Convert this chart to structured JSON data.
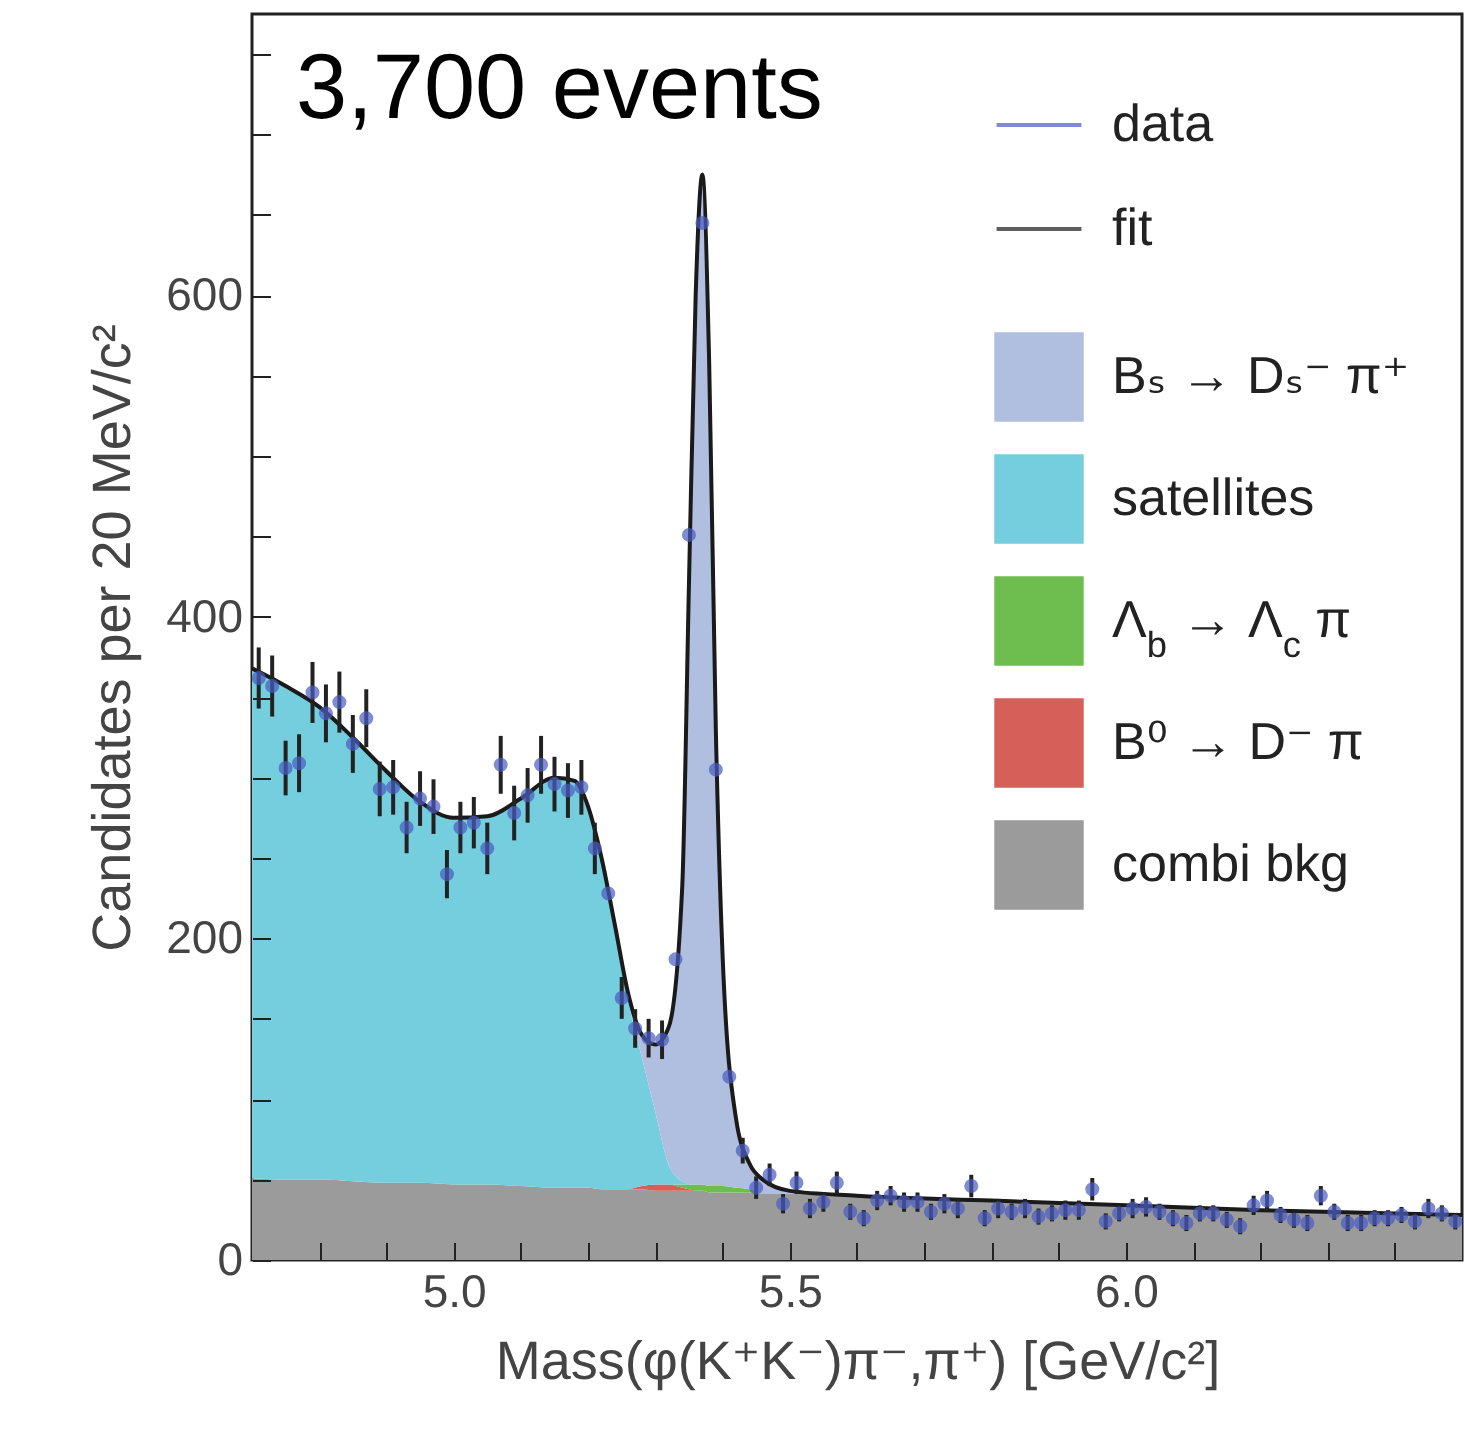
{
  "chart_data": {
    "type": "area",
    "stacked": true,
    "xlabel": "Mass(φ(K⁺K⁻)π⁻,π⁺)  [GeV/c²]",
    "ylabel": "Candidates per 20 MeV/c²",
    "annotations": [
      "3,700 events"
    ],
    "x": [
      4.7,
      4.75,
      4.8,
      4.85,
      4.9,
      4.95,
      5.0,
      5.05,
      5.1,
      5.15,
      5.18,
      5.2,
      5.22,
      5.24,
      5.26,
      5.28,
      5.3,
      5.32,
      5.34,
      5.35,
      5.36,
      5.37,
      5.38,
      5.39,
      5.4,
      5.42,
      5.44,
      5.46,
      5.5,
      5.6,
      5.8,
      6.0,
      6.2,
      6.5
    ],
    "xlim": [
      4.7,
      6.5
    ],
    "ylim": [
      0,
      775
    ],
    "xticks": [
      {
        "value": 4.8,
        "label": null
      },
      {
        "value": 4.9,
        "label": null
      },
      {
        "value": 5,
        "label": "5.0"
      },
      {
        "value": 5.1,
        "label": null
      },
      {
        "value": 5.2,
        "label": null
      },
      {
        "value": 5.3,
        "label": null
      },
      {
        "value": 5.4,
        "label": null
      },
      5.5,
      {
        "value": 5.6,
        "label": null
      },
      {
        "value": 5.7,
        "label": null
      },
      {
        "value": 5.8,
        "label": null
      },
      {
        "value": 5.9,
        "label": null
      },
      {
        "value": 6,
        "label": "6.0"
      },
      {
        "value": 6.1,
        "label": null
      },
      {
        "value": 6.2,
        "label": null
      },
      {
        "value": 6.3,
        "label": null
      },
      {
        "value": 6.4,
        "label": null
      }
    ],
    "yticks": [
      0,
      {
        "value": 50,
        "label": null
      },
      {
        "value": 100,
        "label": null
      },
      {
        "value": 150,
        "label": null
      },
      200,
      {
        "value": 250,
        "label": null
      },
      {
        "value": 300,
        "label": null
      },
      {
        "value": 350,
        "label": null
      },
      400,
      {
        "value": 450,
        "label": null
      },
      {
        "value": 500,
        "label": null
      },
      {
        "value": 550,
        "label": null
      },
      600,
      {
        "value": 650,
        "label": null
      },
      {
        "value": 700,
        "label": null
      },
      {
        "value": 750,
        "label": null
      }
    ],
    "grid": false,
    "legend": "top right",
    "series": [
      {
        "name": "combi bkg",
        "color": "#9b9b9b",
        "values": [
          51,
          50,
          50,
          49,
          48,
          48,
          47,
          47,
          46,
          45,
          45,
          45,
          44,
          44,
          44,
          44,
          43,
          43,
          43,
          43,
          43,
          43,
          42,
          42,
          42,
          42,
          42,
          41,
          41,
          40,
          37,
          34,
          31,
          27
        ]
      },
      {
        "name": "B⁰ → D⁻ π",
        "color": "#d65f59",
        "values": [
          null,
          null,
          null,
          null,
          null,
          null,
          null,
          null,
          null,
          null,
          null,
          null,
          null,
          null,
          0,
          2,
          4,
          4,
          2,
          1,
          0,
          null,
          null,
          null,
          null,
          null,
          null,
          null,
          null,
          null,
          null,
          null,
          null,
          null
        ]
      },
      {
        "name": "Λ$_{b}$ → Λ$_{c}$ π",
        "color": "#6dbe4e",
        "values": [
          null,
          null,
          null,
          null,
          null,
          null,
          null,
          null,
          null,
          null,
          null,
          null,
          null,
          null,
          null,
          null,
          null,
          0,
          2,
          3,
          4,
          4,
          4,
          4,
          4,
          3,
          2,
          0,
          null,
          null,
          null,
          null,
          null,
          null
        ]
      },
      {
        "name": "satellites",
        "color": "#74cedd",
        "values": [
          317,
          307,
          294,
          276,
          256,
          237,
          228,
          229,
          241,
          255,
          253,
          235,
          204,
          161,
          116,
          80,
          45,
          12,
          2,
          0,
          null,
          null,
          null,
          null,
          null,
          null,
          null,
          null,
          null,
          null,
          null,
          null,
          null,
          null
        ]
      },
      {
        "name": "Bₛ → Dₛ⁻ π⁺",
        "color": "#b0bedf",
        "values": [
          null,
          null,
          null,
          null,
          null,
          null,
          null,
          null,
          null,
          null,
          null,
          0,
          2,
          3,
          5,
          14,
          42,
          86,
          184,
          374,
          555,
          630,
          516,
          286,
          146,
          44,
          17,
          9,
          2,
          0,
          null,
          null,
          null,
          null
        ]
      },
      {
        "name": "fit",
        "type": "line",
        "color": "#1a1a1a",
        "values": [
          368,
          357,
          344,
          325,
          304,
          285,
          275,
          276,
          287,
          300,
          298,
          282,
          250,
          208,
          165,
          140,
          134,
          145,
          232,
          420,
          600,
          675,
          560,
          330,
          190,
          88,
          60,
          50,
          43,
          40,
          37,
          34,
          31,
          28
        ]
      },
      {
        "name": "data",
        "type": "scatter",
        "marker": "circle",
        "color": "#4a5cc0",
        "x": [
          4.71,
          4.73,
          4.75,
          4.77,
          4.79,
          4.81,
          4.83,
          4.85,
          4.87,
          4.89,
          4.91,
          4.93,
          4.95,
          4.97,
          4.99,
          5.01,
          5.03,
          5.05,
          5.07,
          5.09,
          5.11,
          5.13,
          5.15,
          5.17,
          5.19,
          5.21,
          5.23,
          5.25,
          5.27,
          5.29,
          5.31,
          5.33,
          5.35,
          5.37,
          5.39,
          5.41,
          5.43,
          5.45,
          5.47,
          5.49,
          5.51,
          5.53,
          5.55,
          5.57,
          5.59,
          5.61,
          5.63,
          5.65,
          5.67,
          5.69,
          5.71,
          5.73,
          5.75,
          5.77,
          5.79,
          5.81,
          5.83,
          5.85,
          5.87,
          5.89,
          5.91,
          5.93,
          5.95,
          5.97,
          5.99,
          6.01,
          6.03,
          6.05,
          6.07,
          6.09,
          6.11,
          6.13,
          6.15,
          6.17,
          6.19,
          6.21,
          6.23,
          6.25,
          6.27,
          6.29,
          6.31,
          6.33,
          6.35,
          6.37,
          6.39,
          6.41,
          6.43,
          6.45,
          6.47,
          6.49
        ],
        "values": [
          362,
          357,
          306,
          309,
          353,
          340,
          347,
          321,
          337,
          293,
          294,
          269,
          287,
          282,
          240,
          269,
          272,
          256,
          308,
          278,
          289,
          308,
          296,
          292,
          294,
          256,
          228,
          163,
          144,
          138,
          137,
          187,
          451,
          645,
          305,
          114,
          68,
          45,
          53,
          35,
          48,
          32,
          36,
          48,
          30,
          26,
          37,
          40,
          36,
          36,
          30,
          35,
          32,
          46,
          26,
          32,
          30,
          32,
          27,
          29,
          31,
          31,
          44,
          24,
          29,
          32,
          33,
          30,
          26,
          23,
          29,
          29,
          25,
          21,
          34,
          37,
          28,
          25,
          23,
          40,
          30,
          23,
          23,
          26,
          26,
          28,
          24,
          32,
          29,
          24
        ],
        "errors": [
          19,
          19,
          17,
          18,
          19,
          18,
          19,
          18,
          18,
          17,
          17,
          16,
          17,
          17,
          15,
          16,
          16,
          16,
          18,
          17,
          17,
          18,
          17,
          17,
          17,
          16,
          null,
          13,
          12,
          12,
          12,
          null,
          null,
          null,
          null,
          null,
          8,
          7,
          7,
          6,
          7,
          6,
          6,
          7,
          5,
          5,
          6,
          6,
          6,
          6,
          5,
          6,
          6,
          7,
          5,
          6,
          5,
          6,
          5,
          5,
          6,
          6,
          7,
          5,
          5,
          6,
          6,
          5,
          5,
          5,
          5,
          5,
          5,
          5,
          6,
          6,
          5,
          5,
          5,
          6,
          5,
          5,
          5,
          5,
          5,
          5,
          5,
          6,
          5,
          5
        ]
      }
    ]
  }
}
